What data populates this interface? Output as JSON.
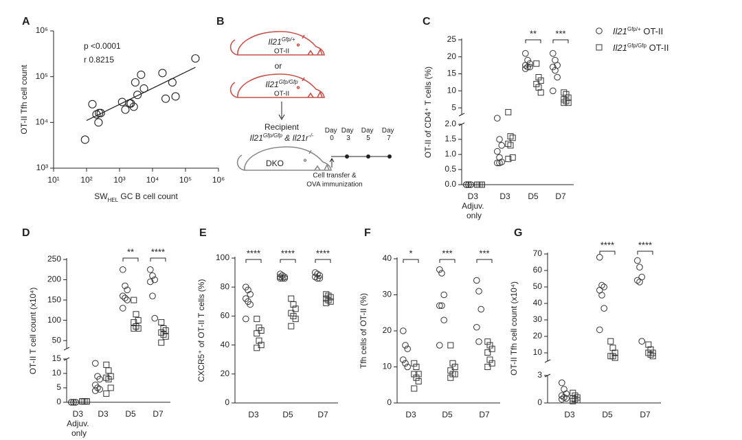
{
  "diagram": {
    "panel": "B",
    "donor1": [
      "Il21",
      {
        "sup": "Gfp/+"
      }
    ],
    "donor1_cells": "OT-II",
    "or": "or",
    "donor2": [
      "Il21",
      {
        "sup": "Gfp/Gfp"
      }
    ],
    "donor2_cells": "OT-II",
    "recipient": "Recipient",
    "recipient_genotype": [
      "Il21",
      {
        "sup": "Gfp/Gfp"
      },
      " & Il21r",
      {
        "sup": "-/-"
      }
    ],
    "recipient_name": "DKO",
    "days": [
      "Day 0",
      "Day 3",
      "Day 5",
      "Day 7"
    ],
    "note": [
      "Cell transfer &",
      "OVA immunization"
    ]
  },
  "chart_data": [
    {
      "panel": "A",
      "type": "scatter",
      "x_label": [
        "SW",
        {
          "sub": "HEL"
        },
        " GC B cell count"
      ],
      "y_label": "OT-II Tfh cell count",
      "log_x": true,
      "log_y": true,
      "xlim": [
        10,
        1000000
      ],
      "ylim": [
        1000,
        1000000
      ],
      "xticks": [
        {
          "value": 10,
          "label": "10¹"
        },
        {
          "value": 100,
          "label": "10²"
        },
        {
          "value": 1000,
          "label": "10³"
        },
        {
          "value": 10000,
          "label": "10⁴"
        },
        {
          "value": 100000,
          "label": "10⁵"
        },
        {
          "value": 1000000,
          "label": "10⁶"
        }
      ],
      "yticks": [
        {
          "value": 1000,
          "label": "10³"
        },
        {
          "value": 10000,
          "label": "10⁴"
        },
        {
          "value": 100000,
          "label": "10⁵"
        },
        {
          "value": 1000000,
          "label": "10⁶"
        }
      ],
      "x": [
        90,
        150,
        200,
        230,
        240,
        270,
        1200,
        1500,
        2000,
        2200,
        2700,
        3000,
        3500,
        4500,
        5500,
        20000,
        25000,
        40000,
        50000,
        200000
      ],
      "y": [
        4200,
        25000,
        15000,
        10000,
        16000,
        16000,
        28000,
        19000,
        26000,
        26000,
        22000,
        75000,
        40000,
        110000,
        55000,
        120000,
        33000,
        75000,
        37000,
        250000
      ],
      "fit": {
        "x": [
          100,
          200000
        ],
        "y": [
          11000,
          160000
        ]
      },
      "annotations": [
        "p <0.0001",
        "r  0.8215"
      ]
    },
    {
      "panel": "C",
      "type": "strip",
      "y_label": "OT-II of CD4⁺ T cells (%)",
      "categories": [
        "D3 Adjuv. only",
        "D3",
        "D5",
        "D7"
      ],
      "y_segments": [
        {
          "ylim": [
            0,
            2
          ],
          "yticks": [
            {
              "value": 0,
              "label": "0.0"
            },
            0.5,
            {
              "value": 1,
              "label": "1.0"
            },
            1.5,
            {
              "value": 2,
              "label": "2.0"
            }
          ]
        },
        {
          "ylim": [
            3,
            25
          ],
          "yticks": [
            5,
            10,
            15,
            20,
            25
          ]
        }
      ],
      "series": [
        {
          "name": [
            {
              "ital": "Il21"
            },
            {
              "sup": "Gfp/+"
            },
            " OT-II"
          ],
          "marker": "circle",
          "values": [
            [
              0,
              0,
              0,
              0,
              0,
              0
            ],
            [
              2.2,
              1.5,
              1.3,
              1.1,
              0.9,
              0.75,
              0.72,
              0.72
            ],
            [
              21,
              19,
              18,
              17.5,
              17,
              17,
              16.5
            ],
            [
              21,
              19,
              17.5,
              17,
              16,
              14,
              10
            ]
          ]
        },
        {
          "name": [
            {
              "ital": "Il21"
            },
            {
              "sup": "Gfp/Gfp"
            },
            " OT-II"
          ],
          "marker": "square",
          "values": [
            [
              0,
              0,
              0,
              0,
              0,
              0
            ],
            [
              2.4,
              1.6,
              1.55,
              1.35,
              1.3,
              0.9,
              0.85
            ],
            [
              18,
              14,
              13,
              12,
              11,
              9.5
            ],
            [
              9.5,
              9,
              8,
              7.5,
              7,
              6.5,
              6.5
            ]
          ]
        }
      ],
      "significance": [
        null,
        null,
        "**",
        "***"
      ]
    },
    {
      "panel": "D",
      "type": "strip",
      "y_label": "OT-II T cell count (x10⁴)",
      "categories": [
        "D3 Adjuv. only",
        "D3",
        "D5",
        "D7"
      ],
      "y_segments": [
        {
          "ylim": [
            0,
            15
          ],
          "yticks": [
            0,
            5,
            10,
            15
          ]
        },
        {
          "ylim": [
            30,
            250
          ],
          "yticks": [
            50,
            100,
            150,
            200,
            250
          ]
        }
      ],
      "series": [
        {
          "marker": "circle",
          "values": [
            [
              0,
              0,
              0,
              0,
              0,
              0
            ],
            [
              13.5,
              9,
              8,
              6,
              5,
              4.5,
              4
            ],
            [
              225,
              185,
              175,
              160,
              155,
              150,
              130
            ],
            [
              225,
              210,
              200,
              195,
              160,
              105
            ]
          ]
        },
        {
          "marker": "square",
          "values": [
            [
              0.3,
              0.3,
              0.3,
              0.3,
              0.3,
              0.3
            ],
            [
              13,
              11,
              9,
              8.5,
              8,
              5,
              3
            ],
            [
              150,
              115,
              100,
              95,
              85,
              80,
              80
            ],
            [
              95,
              80,
              75,
              70,
              65,
              60,
              45
            ]
          ]
        }
      ],
      "significance": [
        null,
        null,
        "**",
        "****"
      ]
    },
    {
      "panel": "E",
      "type": "strip",
      "y_label": "CXCR5⁺ of OT-II T cells (%)",
      "categories": [
        "D3",
        "D5",
        "D7"
      ],
      "y_segments": [
        {
          "ylim": [
            0,
            100
          ],
          "yticks": [
            0,
            20,
            40,
            60,
            80,
            100
          ]
        }
      ],
      "series": [
        {
          "marker": "circle",
          "values": [
            [
              80,
              78,
              75,
              72,
              70,
              68,
              58
            ],
            [
              89,
              88,
              87,
              87,
              86,
              86,
              86
            ],
            [
              90,
              89,
              88,
              87,
              86,
              86
            ]
          ]
        },
        {
          "marker": "square",
          "values": [
            [
              58,
              52,
              50,
              48,
              43,
              40,
              38
            ],
            [
              72,
              68,
              65,
              62,
              60,
              58,
              53
            ],
            [
              75,
              74,
              73,
              72,
              71,
              70,
              69
            ]
          ]
        }
      ],
      "significance": [
        "****",
        "****",
        "****"
      ]
    },
    {
      "panel": "F",
      "type": "strip",
      "y_label": "Tfh cells of OT-II (%)",
      "categories": [
        "D3",
        "D5",
        "D7"
      ],
      "y_segments": [
        {
          "ylim": [
            0,
            40
          ],
          "yticks": [
            0,
            10,
            20,
            30,
            40
          ]
        }
      ],
      "series": [
        {
          "marker": "circle",
          "values": [
            [
              20,
              16,
              15,
              12,
              11,
              10
            ],
            [
              37,
              36,
              30,
              27,
              27,
              23,
              16
            ],
            [
              34,
              31,
              26,
              21,
              17
            ]
          ]
        },
        {
          "marker": "square",
          "values": [
            [
              11,
              10,
              8,
              8,
              7,
              6,
              4
            ],
            [
              16,
              11,
              10,
              9,
              8,
              8,
              7
            ],
            [
              17,
              16,
              15,
              14,
              12,
              11,
              10
            ]
          ]
        }
      ],
      "significance": [
        "*",
        "***",
        "***"
      ]
    },
    {
      "panel": "G",
      "type": "strip",
      "y_label": "OT-II Tfh cell count (x10⁴)",
      "categories": [
        "D3",
        "D5",
        "D7"
      ],
      "y_segments": [
        {
          "ylim": [
            0,
            3
          ],
          "yticks": [
            0,
            3
          ]
        },
        {
          "ylim": [
            5,
            70
          ],
          "yticks": [
            10,
            20,
            30,
            40,
            50,
            60,
            70
          ]
        }
      ],
      "series": [
        {
          "marker": "circle",
          "values": [
            [
              2.2,
              1.5,
              1,
              0.8,
              0.6,
              0.5,
              0.4
            ],
            [
              68,
              51,
              50,
              48,
              45,
              37,
              24
            ],
            [
              66,
              62,
              56,
              54,
              53,
              17
            ]
          ]
        },
        {
          "marker": "square",
          "values": [
            [
              1.1,
              0.8,
              0.6,
              0.5,
              0.4,
              0.3,
              0.2
            ],
            [
              17,
              13,
              10,
              8,
              8,
              7
            ],
            [
              15,
              12,
              10,
              10,
              9,
              8
            ]
          ]
        }
      ],
      "significance": [
        null,
        "****",
        "****"
      ]
    }
  ]
}
